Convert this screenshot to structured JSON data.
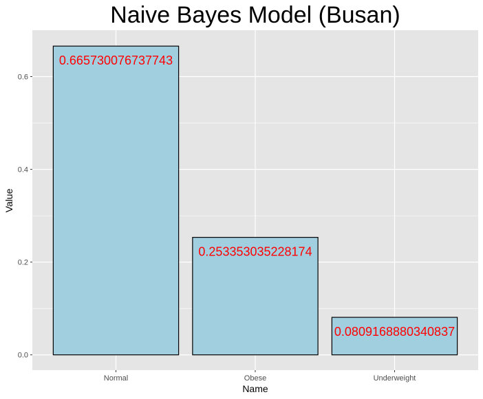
{
  "chart_data": {
    "type": "bar",
    "title": "Naive Bayes Model (Busan)",
    "xlabel": "Name",
    "ylabel": "Value",
    "categories": [
      "Normal",
      "Obese",
      "Underweight"
    ],
    "values": [
      0.665730076737743,
      0.253353035228174,
      0.0809168880340837
    ],
    "data_labels": [
      "0.665730076737743",
      "0.253353035228174",
      "0.0809168880340837"
    ],
    "ylim": [
      -0.033,
      0.7
    ],
    "yticks": [
      0.0,
      0.2,
      0.4,
      0.6
    ],
    "ytick_labels": [
      "0.0",
      "0.2",
      "0.4",
      "0.6"
    ],
    "grid": true,
    "legend": "none",
    "colors": {
      "panel_background": "#e5e5e5",
      "grid": "#ffffff",
      "bar_fill": "#a1cfe0",
      "bar_outline": "#000000",
      "data_label": "#ff0000",
      "tick_label": "#4d4d4d"
    }
  }
}
